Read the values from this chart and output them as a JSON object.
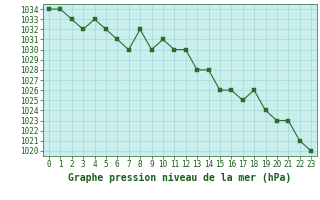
{
  "x": [
    0,
    1,
    2,
    3,
    4,
    5,
    6,
    7,
    8,
    9,
    10,
    11,
    12,
    13,
    14,
    15,
    16,
    17,
    18,
    19,
    20,
    21,
    22,
    23
  ],
  "y": [
    1034,
    1034,
    1033,
    1032,
    1033,
    1032,
    1031,
    1030,
    1032,
    1030,
    1031,
    1030,
    1030,
    1028,
    1028,
    1026,
    1026,
    1025,
    1026,
    1024,
    1023,
    1023,
    1021,
    1020
  ],
  "line_color": "#2d6b2d",
  "marker_color": "#2d6b2d",
  "bg_color": "#c8eeed",
  "fig_bg_color": "#ffffff",
  "grid_color": "#a0d0d0",
  "xlabel": "Graphe pression niveau de la mer (hPa)",
  "xlabel_color": "#1a5c1a",
  "ytick_color": "#1a5c1a",
  "xtick_color": "#1a5c1a",
  "ylim": [
    1019.5,
    1034.5
  ],
  "xlim": [
    -0.5,
    23.5
  ],
  "yticks": [
    1020,
    1021,
    1022,
    1023,
    1024,
    1025,
    1026,
    1027,
    1028,
    1029,
    1030,
    1031,
    1032,
    1033,
    1034
  ],
  "xticks": [
    0,
    1,
    2,
    3,
    4,
    5,
    6,
    7,
    8,
    9,
    10,
    11,
    12,
    13,
    14,
    15,
    16,
    17,
    18,
    19,
    20,
    21,
    22,
    23
  ],
  "marker_size": 2.5,
  "line_width": 0.8,
  "tick_fontsize": 5.5,
  "xlabel_fontsize": 7.0
}
